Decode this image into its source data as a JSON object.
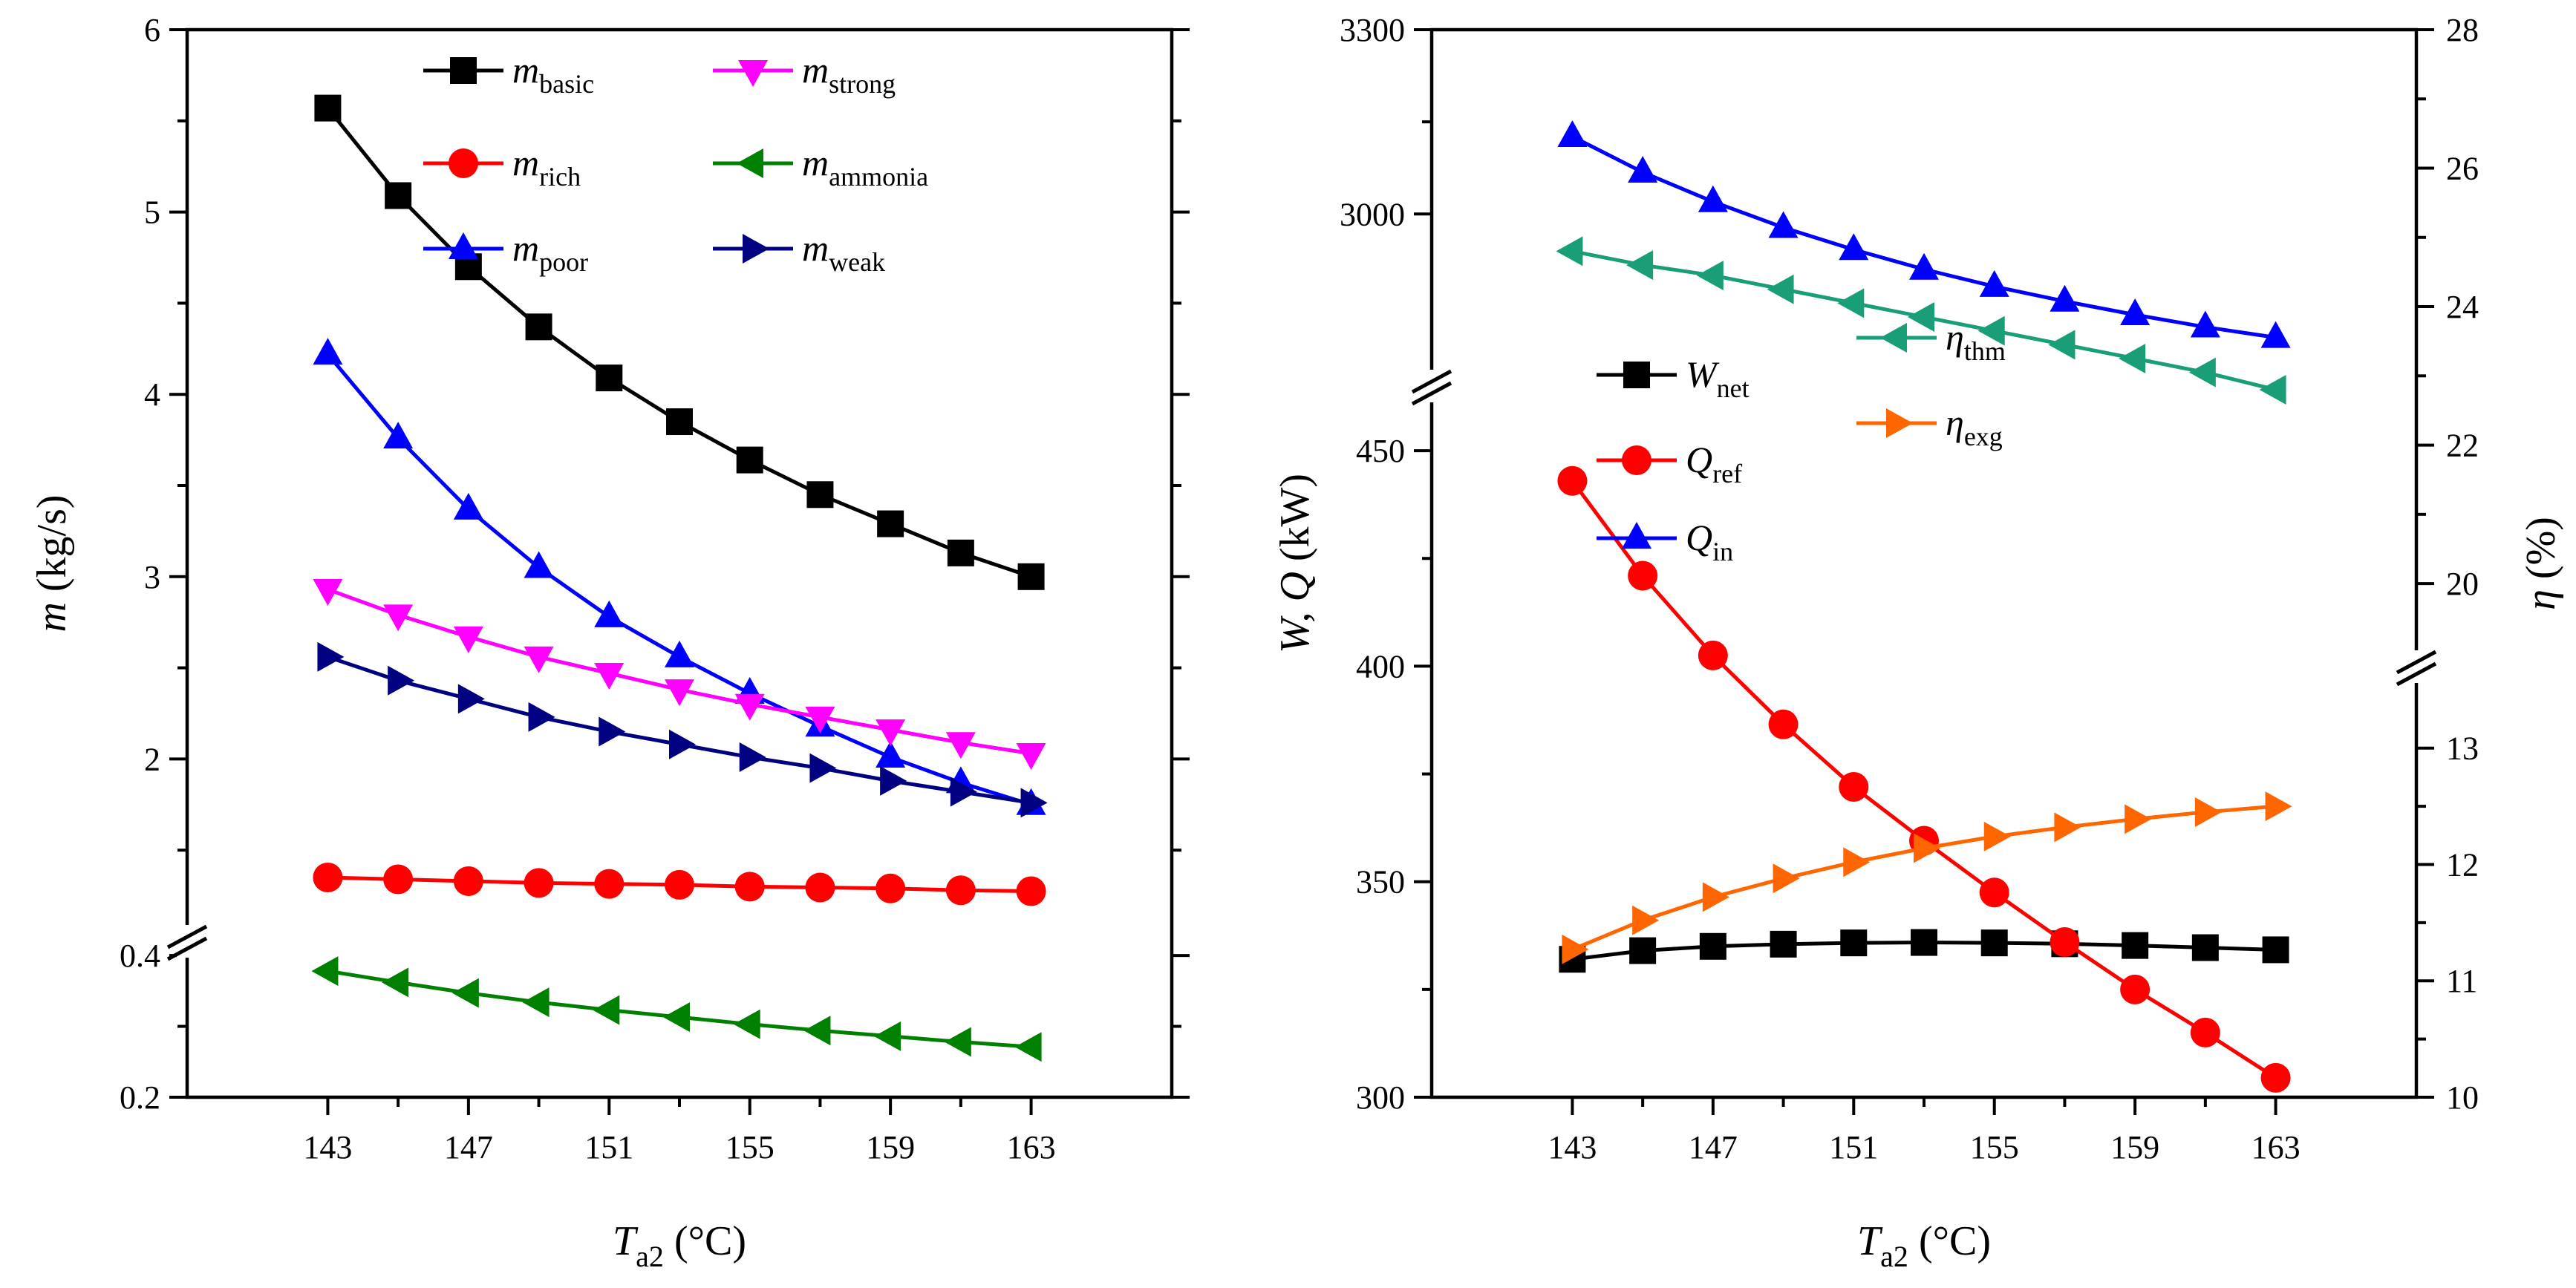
{
  "chart_data": [
    {
      "type": "line",
      "x": [
        143,
        145,
        147,
        149,
        151,
        153,
        155,
        157,
        159,
        161,
        163
      ],
      "xlabel": {
        "main": "T",
        "sub": "a2",
        "unit": " (°C)"
      },
      "ylabel": {
        "main": "m",
        "unit": " (kg/s)"
      },
      "xlim": [
        139,
        167
      ],
      "xticks": [
        "143",
        "147",
        "151",
        "155",
        "159",
        "163"
      ],
      "upper": {
        "ylim": [
          1,
          6
        ],
        "yticks": [
          "2",
          "3",
          "4",
          "5",
          "6"
        ]
      },
      "lower": {
        "ylim": [
          0.2,
          0.42
        ],
        "yticks": [
          "0.2",
          "0.4"
        ]
      },
      "series": [
        {
          "name": "basic",
          "main": "m",
          "sub": "basic",
          "color": "#000000",
          "marker": "square",
          "segment": "upper",
          "values": [
            5.57,
            5.09,
            4.7,
            4.37,
            4.09,
            3.85,
            3.64,
            3.45,
            3.29,
            3.13,
            3.0
          ]
        },
        {
          "name": "rich",
          "main": "m",
          "sub": "rich",
          "color": "#ff0000",
          "marker": "circle",
          "segment": "upper",
          "values": [
            1.35,
            1.34,
            1.33,
            1.32,
            1.315,
            1.31,
            1.3,
            1.295,
            1.29,
            1.28,
            1.275
          ]
        },
        {
          "name": "poor",
          "main": "m",
          "sub": "poor",
          "color": "#0000ff",
          "marker": "triangle-up",
          "segment": "upper",
          "values": [
            4.22,
            3.76,
            3.37,
            3.05,
            2.78,
            2.56,
            2.36,
            2.18,
            2.01,
            1.87,
            1.75
          ]
        },
        {
          "name": "strong",
          "main": "m",
          "sub": "strong",
          "color": "#ff00ff",
          "marker": "triangle-down",
          "segment": "upper",
          "values": [
            2.93,
            2.79,
            2.67,
            2.56,
            2.47,
            2.38,
            2.3,
            2.23,
            2.16,
            2.09,
            2.03
          ]
        },
        {
          "name": "ammonia",
          "main": "m",
          "sub": "ammonia",
          "color": "#008000",
          "marker": "triangle-left",
          "segment": "lower",
          "values": [
            0.378,
            0.362,
            0.347,
            0.334,
            0.323,
            0.313,
            0.303,
            0.294,
            0.286,
            0.278,
            0.271
          ]
        },
        {
          "name": "weak",
          "main": "m",
          "sub": "weak",
          "color": "#000080",
          "marker": "triangle-right",
          "segment": "upper",
          "values": [
            2.56,
            2.43,
            2.33,
            2.23,
            2.15,
            2.08,
            2.01,
            1.95,
            1.88,
            1.82,
            1.76
          ]
        }
      ]
    },
    {
      "type": "line",
      "x": [
        143,
        145,
        147,
        149,
        151,
        153,
        155,
        157,
        159,
        161,
        163
      ],
      "xlabel": {
        "main": "T",
        "sub": "a2",
        "unit": " (°C)"
      },
      "ylabel_left": {
        "main": "W, Q",
        "unit": " (kW)"
      },
      "ylabel_right": {
        "main": "η",
        "unit": " (%)"
      },
      "xlim": [
        139,
        167
      ],
      "xticks": [
        "143",
        "147",
        "151",
        "155",
        "159",
        "163"
      ],
      "left_upper": {
        "ylim": [
          2720,
          3300
        ],
        "yticks": [
          "3000",
          "3300"
        ]
      },
      "left_lower": {
        "ylim": [
          300,
          465
        ],
        "yticks": [
          "300",
          "350",
          "400",
          "450"
        ]
      },
      "right_upper": {
        "ylim": [
          18.8,
          28
        ],
        "yticks": [
          "20",
          "22",
          "24",
          "26",
          "28"
        ]
      },
      "right_lower": {
        "ylim": [
          10,
          13.7
        ],
        "yticks": [
          "10",
          "11",
          "12",
          "13"
        ]
      },
      "series": [
        {
          "name": "W_net",
          "main": "W",
          "sub": "net",
          "color": "#000000",
          "marker": "square",
          "axis": "left_lower",
          "values": [
            332,
            334,
            335,
            335.5,
            335.8,
            335.9,
            335.8,
            335.6,
            335.2,
            334.7,
            334.2
          ]
        },
        {
          "name": "Q_ref",
          "main": "Q",
          "sub": "ref",
          "color": "#ff0000",
          "marker": "circle",
          "axis": "left_lower",
          "values": [
            443,
            421,
            402.5,
            386.5,
            372,
            359.5,
            347.5,
            336,
            325,
            315,
            304.5
          ]
        },
        {
          "name": "Q_in",
          "main": "Q",
          "sub": "in",
          "color": "#0000ff",
          "marker": "triangle-up",
          "axis": "left_upper",
          "values": [
            3126,
            3068,
            3020,
            2978,
            2942,
            2910,
            2882,
            2858,
            2836,
            2816,
            2799
          ]
        },
        {
          "name": "eta_thm",
          "main": "η",
          "sub": "thm",
          "color": "#1a9e77",
          "marker": "triangle-left",
          "axis": "right_upper",
          "values": [
            24.8,
            24.6,
            24.45,
            24.25,
            24.05,
            23.85,
            23.65,
            23.45,
            23.25,
            23.05,
            22.8
          ]
        },
        {
          "name": "eta_exg",
          "main": "η",
          "sub": "exg",
          "color": "#ff6600",
          "marker": "triangle-right",
          "axis": "right_lower",
          "values": [
            11.27,
            11.52,
            11.72,
            11.88,
            12.02,
            12.14,
            12.24,
            12.32,
            12.39,
            12.45,
            12.5
          ]
        }
      ]
    }
  ]
}
